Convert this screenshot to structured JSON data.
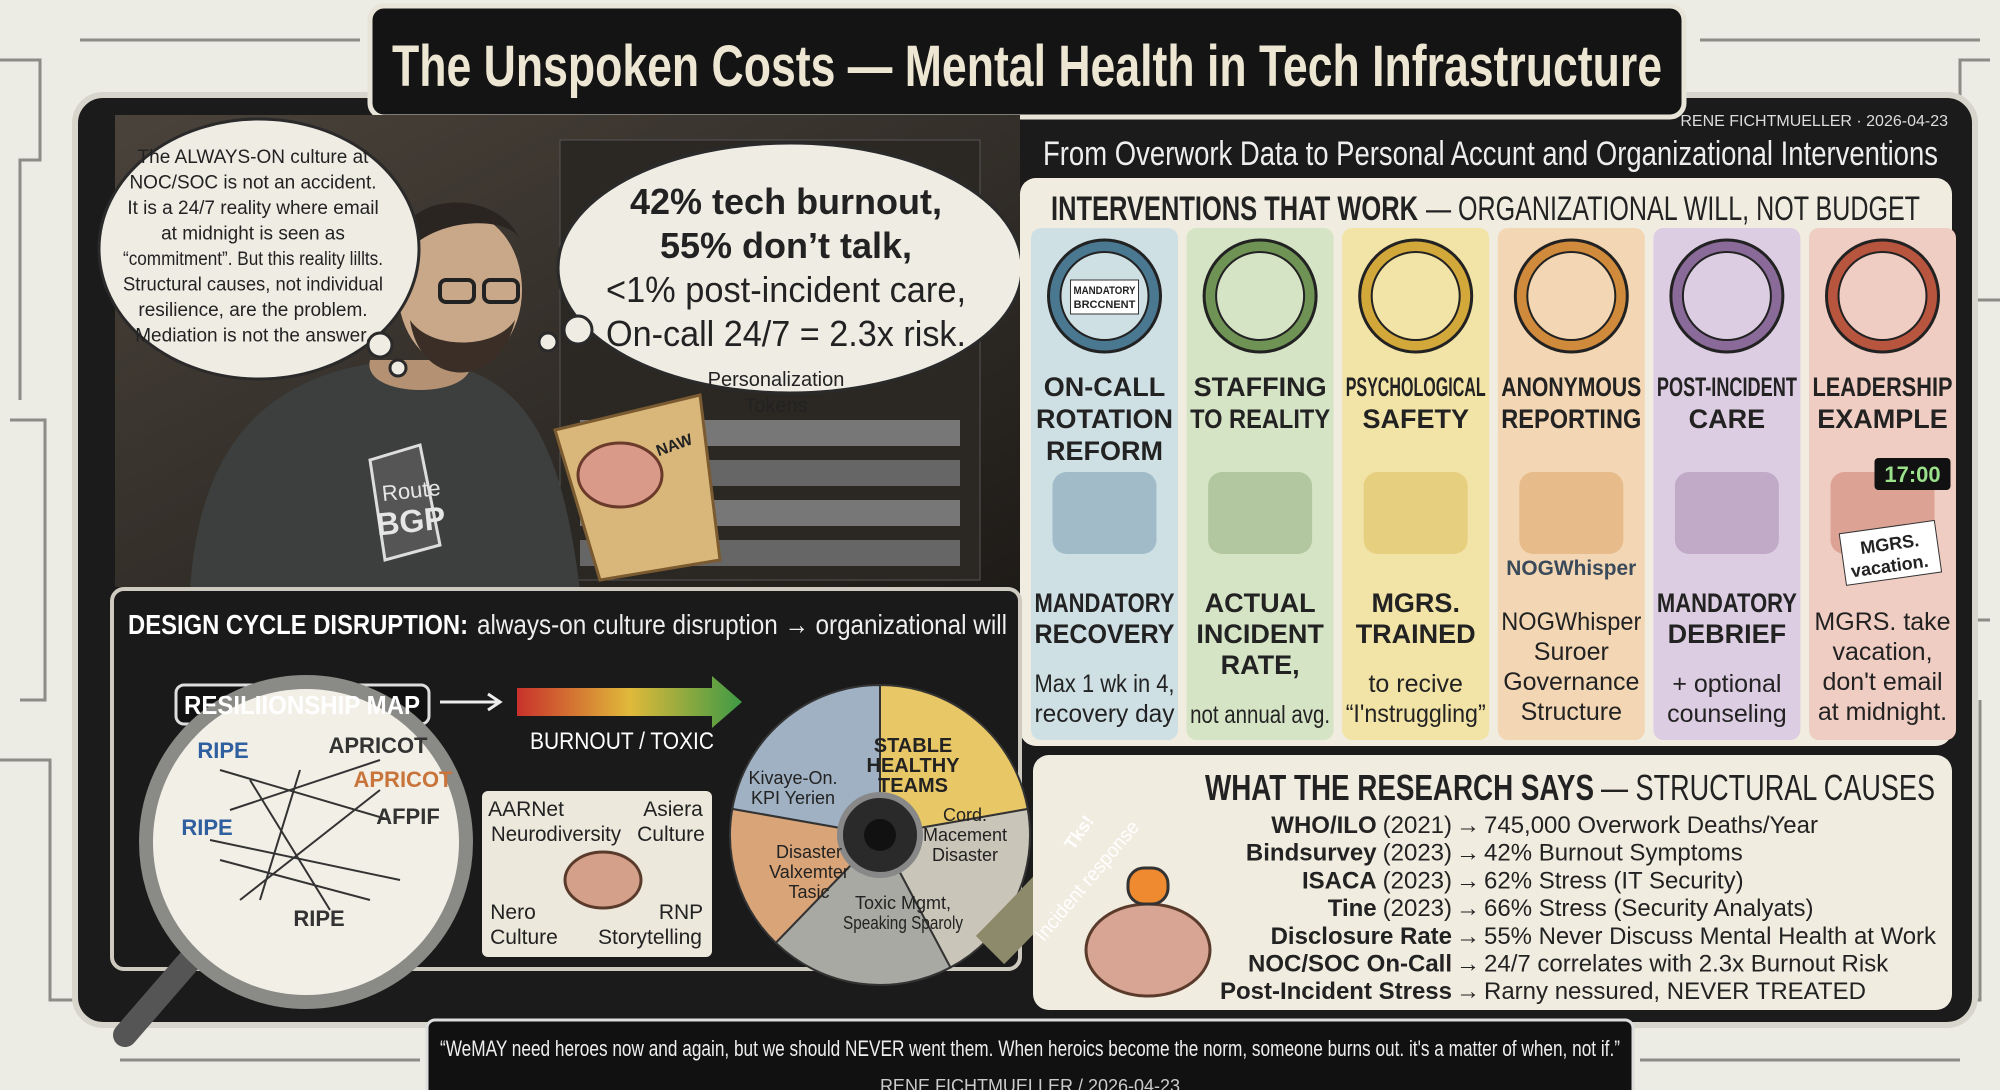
{
  "header": {
    "title": "The Unspoken Costs — Mental Health in Tech Infrastructure",
    "byline": "RENE FICHTMUELLER · 2026-04-23",
    "subtitle": "From Overwork Data to Personal Accunt and Organizational Interventions"
  },
  "scene": {
    "thought_left": [
      "The ALWAYS-ON culture at",
      "NOC/SOC is not an accident.",
      "It is a 24/7 reality where email",
      "at midnight is seen as",
      "“commitment”. But this reality lillts.",
      "Structural causes, not individual",
      "resilience, are the problem.",
      "Mediation is not the answer."
    ],
    "thought_right": [
      "42% tech burnout,",
      "55% don’t talk,",
      "<1% post-incident care,",
      "On-call 24/7 = 2.3x risk."
    ],
    "tokens": [
      "Personalization",
      "Tokens"
    ],
    "shirt": [
      "Route",
      "BGP"
    ],
    "paper": "NAW"
  },
  "interventions": {
    "title": "INTERVENTIONS THAT WORK",
    "subtitle": "— ORGANIZATIONAL WILL, NOT BUDGET",
    "columns": [
      {
        "title": [
          "ON-CALL",
          "ROTATION",
          "REFORM"
        ],
        "icon_labels": [
          "MANDATORY",
          "BRCCNENT"
        ],
        "emphasis": [
          "MANDATORY",
          "RECOVERY"
        ],
        "detail": [
          "Max 1 wk in 4,",
          "recovery day"
        ],
        "color": "#cfe0e5",
        "accent": "#4a7891"
      },
      {
        "title": [
          "STAFFING",
          "TO REALITY"
        ],
        "emphasis": [
          "ACTUAL",
          "INCIDENT",
          "RATE,"
        ],
        "detail": [
          "not annual avg."
        ],
        "color": "#d6e4c6",
        "accent": "#6f9355"
      },
      {
        "title": [
          "PSYCHOLOGICAL",
          "SAFETY"
        ],
        "emphasis": [
          "MGRS.",
          "TRAINED"
        ],
        "detail": [
          "to recive",
          "“I'nstruggling”"
        ],
        "color": "#f2e3a6",
        "accent": "#d3a83a"
      },
      {
        "title": [
          "ANONYMOUS",
          "REPORTING"
        ],
        "icon_labels": [
          "NOGWhisper"
        ],
        "detail": [
          "NOGWhisper",
          "Suroer",
          "Governance",
          "Structure"
        ],
        "color": "#f3d7b4",
        "accent": "#d08a3c"
      },
      {
        "title": [
          "POST-INCIDENT",
          "CARE"
        ],
        "emphasis": [
          "MANDATORY",
          "DEBRIEF"
        ],
        "detail": [
          "+ optional",
          "counseling"
        ],
        "color": "#ddcde2",
        "accent": "#8a6a98"
      },
      {
        "title": [
          "LEADERSHIP",
          "EXAMPLE"
        ],
        "icon_labels": [
          "17:00",
          "MGRS.",
          "vacation."
        ],
        "detail": [
          "MGRS. take",
          "vacation,",
          "don't email",
          "at midnight."
        ],
        "color": "#f0cdc3",
        "accent": "#b8553f"
      }
    ]
  },
  "design_cycle": {
    "title": "DESIGN CYCLE DISRUPTION:",
    "subtitle": "always-on culture disruption → organizational will",
    "map_title": "RESILIIONSHIP MAP",
    "arrow_label": "BURNOUT / TOXIC",
    "map_labels": [
      "RIPE",
      "APRICOT",
      "APRICOT",
      "AFPIF",
      "RIPE",
      "RIPE"
    ],
    "culture_labels": [
      [
        "AARNet",
        "Neurodiversity"
      ],
      [
        "Asiera",
        "Culture"
      ],
      [
        "Nero",
        "Culture"
      ],
      [
        "RNP",
        "Storytelling"
      ]
    ],
    "gear_labels": [
      [
        "STABLE",
        "HEALTHY",
        "TEAMS"
      ],
      [
        "Kivaye-On.",
        "KPI Yerien"
      ],
      [
        "Cord.",
        "Macement",
        "Disaster"
      ],
      [
        "Disaster",
        "Valxemter",
        "Tasic"
      ],
      [
        "Toxic Mgmt,",
        "Speaking Sparoly"
      ]
    ],
    "response": "Incident response",
    "thanks": "Tks!"
  },
  "research": {
    "title": "WHAT THE RESEARCH SAYS",
    "subtitle": "— STRUCTURAL CAUSES",
    "arrow": "→",
    "rows": [
      {
        "source": "WHO/ILO",
        "year": "(2021)",
        "finding": "745,000 Overwork Deaths/Year"
      },
      {
        "source": "Bindsurvey",
        "year": "(2023)",
        "finding": "42% Burnout Symptoms"
      },
      {
        "source": "ISACA",
        "year": "(2023)",
        "finding": "62% Stress (IT Security)"
      },
      {
        "source": "Tine",
        "year": "(2023)",
        "finding": "66% Stress (Security Analyats)"
      },
      {
        "source": "Disclosure Rate",
        "finding": "55% Never Discuss Mental Health at Work"
      },
      {
        "source": "NOC/SOC On-Call",
        "finding": "24/7 correlates with 2.3x Burnout Risk"
      },
      {
        "source": "Post-Incident Stress",
        "finding": "Rarny nessured, NEVER TREATED"
      }
    ]
  },
  "quote": {
    "text": "“WeMAY need heroes now and again, but we should NEVER went them. When heroics become the norm, someone burns out. it's a matter of when, not if.”",
    "byline": "RENE FICHTMUELLER / 2026-04-23"
  }
}
